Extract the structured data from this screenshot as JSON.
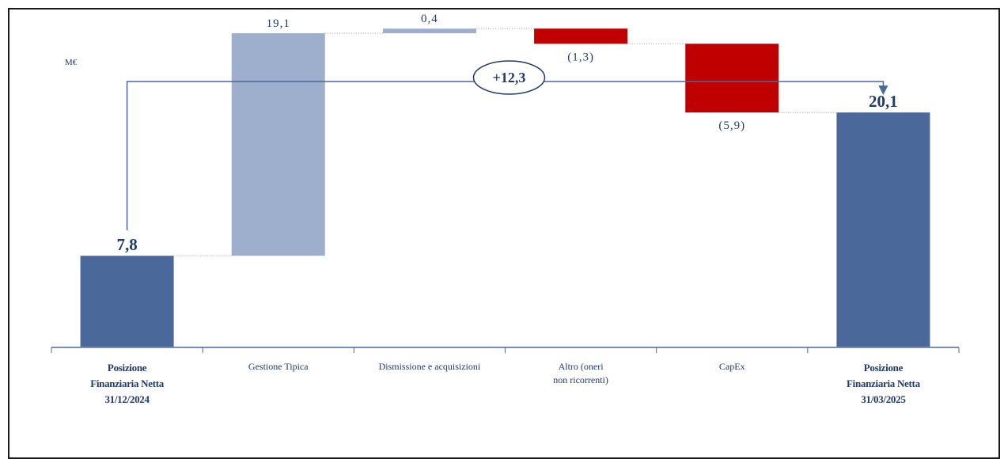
{
  "chart_data": {
    "type": "waterfall",
    "unit": "M€",
    "total_change_label": "+12,3",
    "ylim": [
      0,
      25
    ],
    "steps": [
      {
        "kind": "total",
        "label_lines": [
          "Posizione",
          "Finanziaria Netta",
          "31/12/2024"
        ],
        "value": 7.8,
        "value_label": "7,8",
        "color": "#4a6899"
      },
      {
        "kind": "delta",
        "label_lines": [
          "Gestione Tipica"
        ],
        "value": 19.1,
        "value_label": "19,1",
        "color": "#9dafcd"
      },
      {
        "kind": "delta",
        "label_lines": [
          "Dismissione e acquisizioni"
        ],
        "value": 0.4,
        "value_label": "0,4",
        "color": "#9dafcd"
      },
      {
        "kind": "delta",
        "label_lines": [
          "Altro (oneri",
          "non ricorrenti)"
        ],
        "value": -1.3,
        "value_label": "(1,3)",
        "color": "#c00000"
      },
      {
        "kind": "delta",
        "label_lines": [
          "CapEx"
        ],
        "value": -5.9,
        "value_label": "(5,9)",
        "color": "#c00000"
      },
      {
        "kind": "total",
        "label_lines": [
          "Posizione",
          "Finanziaria Netta",
          "31/03/2025"
        ],
        "value": 20.1,
        "value_label": "20,1",
        "color": "#4a6899"
      }
    ]
  }
}
